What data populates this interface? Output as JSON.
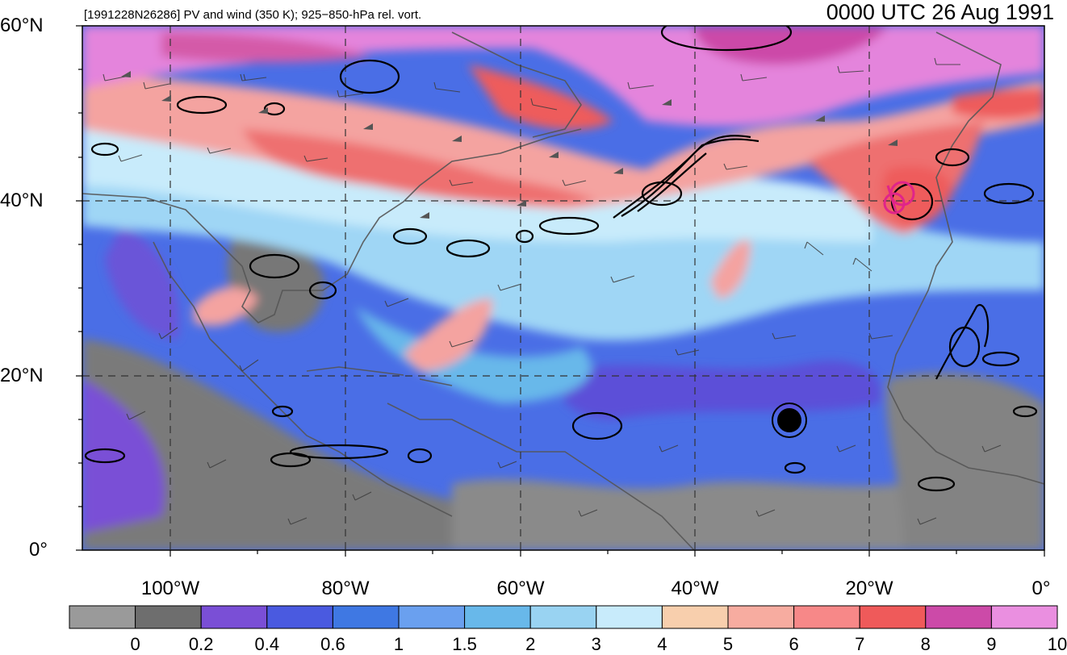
{
  "header": {
    "left_title": "[1991228N26286] PV and wind (350 K); 925−850-hPa rel. vort.",
    "right_title": "0000 UTC 26 Aug 1991"
  },
  "axes": {
    "lat_labels": [
      "60°N",
      "40°N",
      "20°N",
      "0°"
    ],
    "lon_labels": [
      "100°W",
      "80°W",
      "60°W",
      "40°W",
      "20°W",
      "0°"
    ],
    "lat_range": [
      0,
      60
    ],
    "lon_range": [
      -110,
      0
    ],
    "gridlines": "dashed"
  },
  "colorbar": {
    "labels": [
      "0",
      "0.2",
      "0.4",
      "0.6",
      "1",
      "1.5",
      "2",
      "3",
      "4",
      "5",
      "6",
      "7",
      "8",
      "9",
      "10"
    ],
    "colors": [
      "#9a9a9a",
      "#6e6e6e",
      "#7a4fd6",
      "#4a5ae0",
      "#3f78e3",
      "#6aa0ef",
      "#68b8ea",
      "#99d3f2",
      "#c8ebfb",
      "#f8cfad",
      "#f7aca0",
      "#f78888",
      "#ef5a5a",
      "#cc4aa8",
      "#ea8fe0"
    ]
  },
  "colors": {
    "low_pv_grey": "#7a7a7a",
    "blue": "#4a6ee6",
    "light_blue": "#9fd6f5",
    "pink": "#f4a3a0",
    "red": "#ee5c5c",
    "magenta": "#e484dc",
    "vorticity_contour": "#000000",
    "tc_marker": "#e0248a",
    "coastline": "#555555"
  }
}
